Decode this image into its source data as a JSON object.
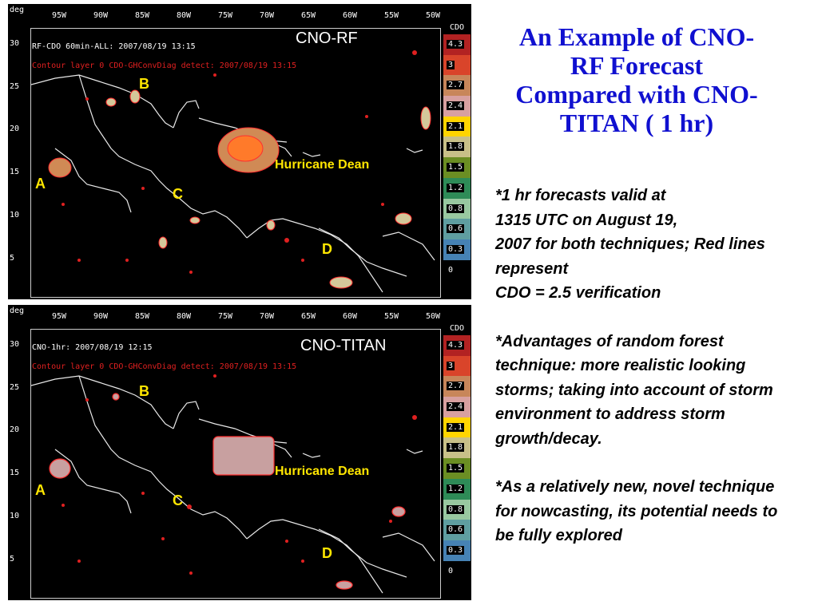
{
  "title_lines": [
    "An Example of CNO-",
    "RF Forecast",
    "Compared with CNO-",
    "TITAN ( 1 hr)"
  ],
  "notes": [
    "*1 hr forecasts valid at\n1315 UTC on August 19,\n2007 for both techniques; Red lines represent\nCDO = 2.5 verification",
    "*Advantages of random forest technique: more realistic looking storms; taking into account of storm environment to address storm growth/decay.",
    "*As a relatively new, novel technique for nowcasting, its potential needs to be fully explored"
  ],
  "axes": {
    "deg_label": "deg",
    "lon_labels": [
      "95W",
      "90W",
      "85W",
      "80W",
      "75W",
      "70W",
      "65W",
      "60W",
      "55W",
      "50W"
    ],
    "lat_labels": [
      "30",
      "25",
      "20",
      "15",
      "10",
      "5"
    ]
  },
  "legend": {
    "title": "CDO",
    "items": [
      {
        "label": "4.3",
        "color": "#b22222"
      },
      {
        "label": "3",
        "color": "#d9442a"
      },
      {
        "label": "2.7",
        "color": "#c8865a"
      },
      {
        "label": "2.4",
        "color": "#d8a0a0"
      },
      {
        "label": "2.1",
        "color": "#ffd400"
      },
      {
        "label": "1.8",
        "color": "#c8c088"
      },
      {
        "label": "1.5",
        "color": "#6b8e23"
      },
      {
        "label": "1.2",
        "color": "#2e8b57"
      },
      {
        "label": "0.8",
        "color": "#98c8a0"
      },
      {
        "label": "0.6",
        "color": "#5f9ea0"
      },
      {
        "label": "0.3",
        "color": "#4682b4"
      },
      {
        "label": "0",
        "color": "#7080a0"
      }
    ]
  },
  "panels": {
    "rf": {
      "title": "CNO-RF",
      "line1": "RF-CDO 60min-ALL: 2007/08/19 13:15",
      "line2": "Contour layer 0 CDO-GHConvDiag detect: 2007/08/19 13:15",
      "hurricane_label": "Hurricane Dean",
      "labels": {
        "a": "A",
        "b": "B",
        "c": "C",
        "d": "D"
      }
    },
    "titan": {
      "title": "CNO-TITAN",
      "line1": "CNO-1hr: 2007/08/19 12:15",
      "line2": "Contour layer 0 CDO-GHConvDiag detect: 2007/08/19 13:15",
      "hurricane_label": "Hurricane Dean",
      "labels": {
        "a": "A",
        "b": "B",
        "c": "C",
        "d": "D"
      }
    }
  }
}
